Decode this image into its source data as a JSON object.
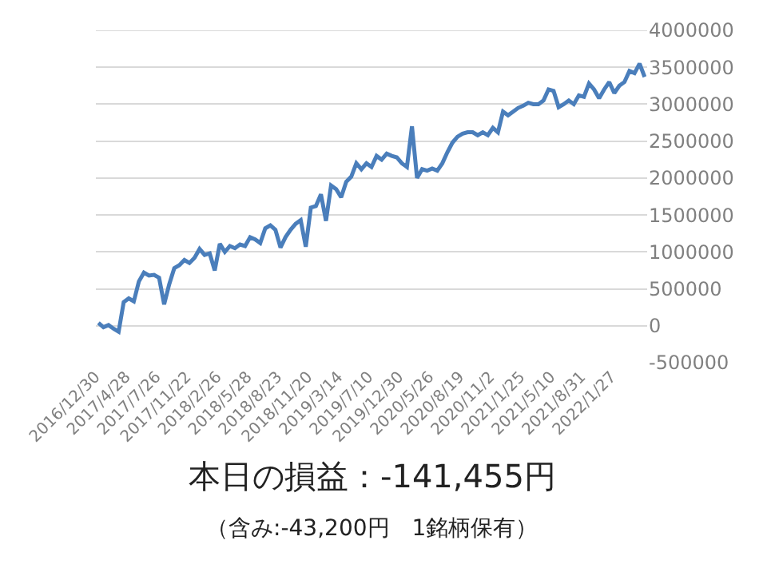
{
  "chart_data": {
    "type": "line",
    "categories": [
      "2016/12/30",
      null,
      null,
      null,
      null,
      null,
      "2017/4/28",
      null,
      null,
      null,
      null,
      null,
      "2017/7/26",
      null,
      null,
      null,
      null,
      null,
      "2017/11/22",
      null,
      null,
      null,
      null,
      null,
      "2018/2/26",
      null,
      null,
      null,
      null,
      null,
      "2018/5/28",
      null,
      null,
      null,
      null,
      null,
      "2018/8/23",
      null,
      null,
      null,
      null,
      null,
      "2018/11/20",
      null,
      null,
      null,
      null,
      null,
      "2019/3/14",
      null,
      null,
      null,
      null,
      null,
      "2019/7/10",
      null,
      null,
      null,
      null,
      null,
      "2019/12/30",
      null,
      null,
      null,
      null,
      null,
      "2020/5/26",
      null,
      null,
      null,
      null,
      null,
      "2020/8/19",
      null,
      null,
      null,
      null,
      null,
      "2020/11/2",
      null,
      null,
      null,
      null,
      null,
      "2021/1/25",
      null,
      null,
      null,
      null,
      null,
      "2021/5/10",
      null,
      null,
      null,
      null,
      null,
      "2021/8/31",
      null,
      null,
      null,
      null,
      null,
      "2022/1/27",
      null,
      null,
      null,
      null,
      null,
      null
    ],
    "series": [
      {
        "color": "#4a7ebb",
        "values": [
          40000,
          -20000,
          10000,
          -40000,
          -80000,
          320000,
          370000,
          330000,
          600000,
          720000,
          680000,
          690000,
          650000,
          290000,
          560000,
          780000,
          820000,
          890000,
          850000,
          920000,
          1040000,
          960000,
          980000,
          750000,
          1110000,
          1000000,
          1080000,
          1050000,
          1100000,
          1080000,
          1200000,
          1170000,
          1120000,
          1320000,
          1360000,
          1300000,
          1060000,
          1200000,
          1300000,
          1380000,
          1430000,
          1070000,
          1600000,
          1620000,
          1780000,
          1420000,
          1900000,
          1850000,
          1740000,
          1950000,
          2020000,
          2200000,
          2120000,
          2200000,
          2150000,
          2300000,
          2250000,
          2330000,
          2300000,
          2280000,
          2200000,
          2150000,
          2700000,
          2000000,
          2120000,
          2100000,
          2130000,
          2100000,
          2200000,
          2350000,
          2480000,
          2560000,
          2600000,
          2620000,
          2620000,
          2580000,
          2620000,
          2580000,
          2680000,
          2620000,
          2900000,
          2850000,
          2900000,
          2950000,
          2980000,
          3020000,
          3000000,
          3000000,
          3050000,
          3200000,
          3180000,
          2960000,
          3000000,
          3050000,
          3000000,
          3120000,
          3100000,
          3280000,
          3200000,
          3080000,
          3200000,
          3300000,
          3150000,
          3250000,
          3300000,
          3450000,
          3420000,
          3550000,
          3370000
        ]
      }
    ],
    "ylim": [
      -500000,
      4000000
    ],
    "yticks": [
      -500000,
      0,
      500000,
      1000000,
      1500000,
      2000000,
      2500000,
      3000000,
      3500000,
      4000000
    ],
    "grid": "y",
    "annotations": [
      "本日の損益：-141,455円",
      "（含み:-43,200円　1銘柄保有）"
    ]
  }
}
